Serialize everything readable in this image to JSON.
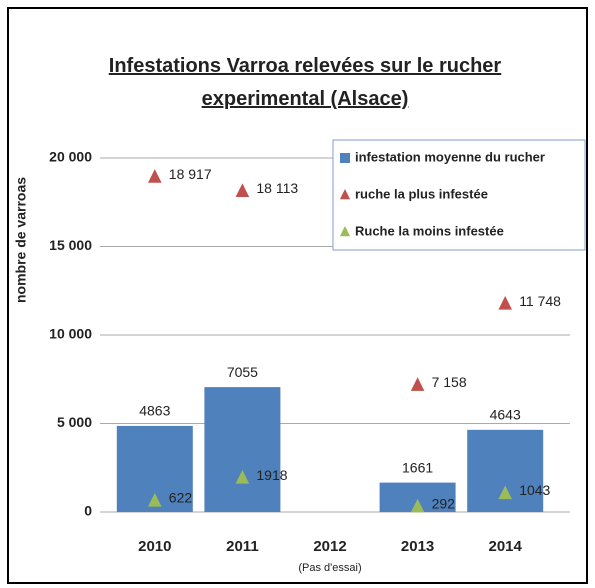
{
  "chart_data": {
    "type": "bar",
    "title": "Infestations Varroa relevées sur le rucher experimental (Alsace)",
    "ylabel": "nombre de varroas",
    "categories": [
      "2010",
      "2011",
      "2012",
      "2013",
      "2014"
    ],
    "annotation": "(Pas d'essai)",
    "series": [
      {
        "name": "infestation moyenne du rucher",
        "type": "bar",
        "color": "#4f81bd",
        "values": [
          4863,
          7055,
          null,
          1661,
          4643
        ]
      },
      {
        "name": "ruche la plus infestée",
        "type": "triangle",
        "color": "#c0504d",
        "values": [
          18917,
          18113,
          null,
          7158,
          11748
        ],
        "value_labels": [
          "18 917",
          "18 113",
          null,
          "7 158",
          "11 748"
        ]
      },
      {
        "name": "Ruche la moins infestée",
        "type": "triangle",
        "color": "#9bbb59",
        "values": [
          622,
          1918,
          null,
          292,
          1043
        ]
      }
    ],
    "ylim": [
      0,
      20000
    ],
    "yticks": [
      0,
      {
        "value": 5000,
        "label": "5 000"
      },
      {
        "value": 10000,
        "label": "10 000"
      },
      {
        "value": 15000,
        "label": "15 000"
      },
      {
        "value": 20000,
        "label": "20 000"
      }
    ],
    "grid": true,
    "legend": "top-right"
  }
}
